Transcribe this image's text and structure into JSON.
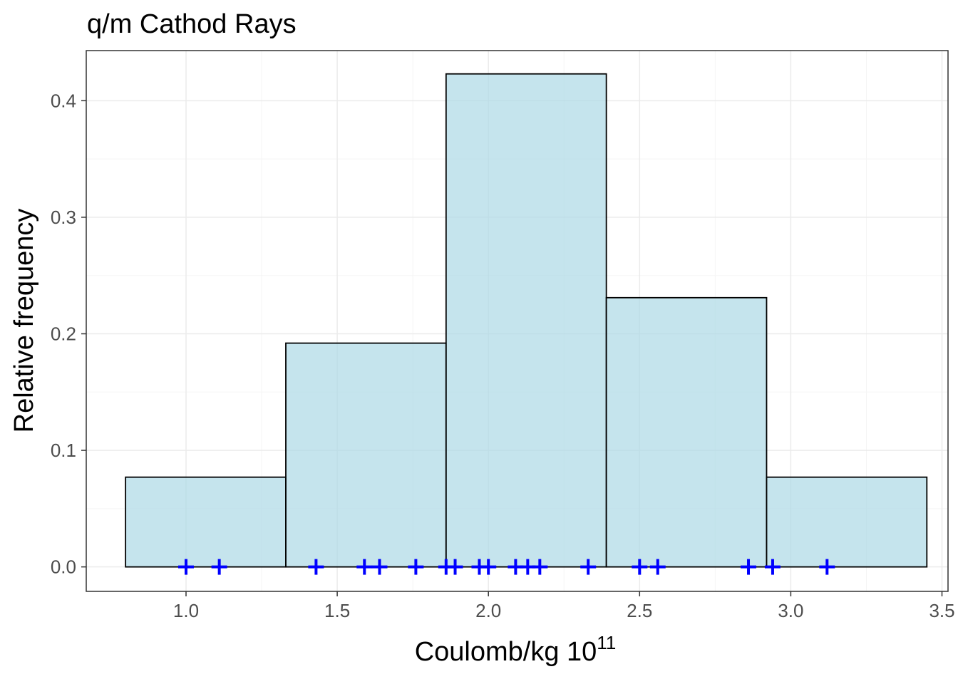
{
  "chart_data": {
    "type": "bar",
    "subtype": "histogram",
    "title": "q/m Cathod Rays",
    "xlabel": "Coulomb/kg 10",
    "xlabel_superscript": "11",
    "ylabel": "Relative frequency",
    "xlim": [
      0.67,
      3.52
    ],
    "ylim": [
      -0.021,
      0.443
    ],
    "x_ticks": [
      1.0,
      1.5,
      2.0,
      2.5,
      3.0,
      3.5
    ],
    "x_tick_labels": [
      "1.0",
      "1.5",
      "2.0",
      "2.5",
      "3.0",
      "3.5"
    ],
    "y_ticks": [
      0.0,
      0.1,
      0.2,
      0.3,
      0.4
    ],
    "y_tick_labels": [
      "0.0",
      "0.1",
      "0.2",
      "0.3",
      "0.4"
    ],
    "bins": [
      {
        "x0": 0.8,
        "x1": 1.33,
        "value": 0.077
      },
      {
        "x0": 1.33,
        "x1": 1.86,
        "value": 0.192
      },
      {
        "x0": 1.86,
        "x1": 2.39,
        "value": 0.423
      },
      {
        "x0": 2.39,
        "x1": 2.92,
        "value": 0.231
      },
      {
        "x0": 2.92,
        "x1": 3.45,
        "value": 0.077
      }
    ],
    "observations": [
      1.0,
      1.11,
      1.43,
      1.59,
      1.64,
      1.76,
      1.86,
      1.89,
      1.97,
      2.0,
      2.09,
      2.13,
      2.17,
      2.33,
      2.5,
      2.56,
      2.86,
      2.94,
      3.12
    ],
    "grid": true,
    "legend": "none",
    "colors": {
      "bar_fill": "#add8e6",
      "bar_fill_opacity": 0.7,
      "bar_stroke": "#000000",
      "points": "#0000ff",
      "grid_major": "#ebebeb",
      "grid_minor": "#f5f5f5",
      "panel_border": "#333333",
      "tick_text": "#4d4d4d"
    }
  }
}
